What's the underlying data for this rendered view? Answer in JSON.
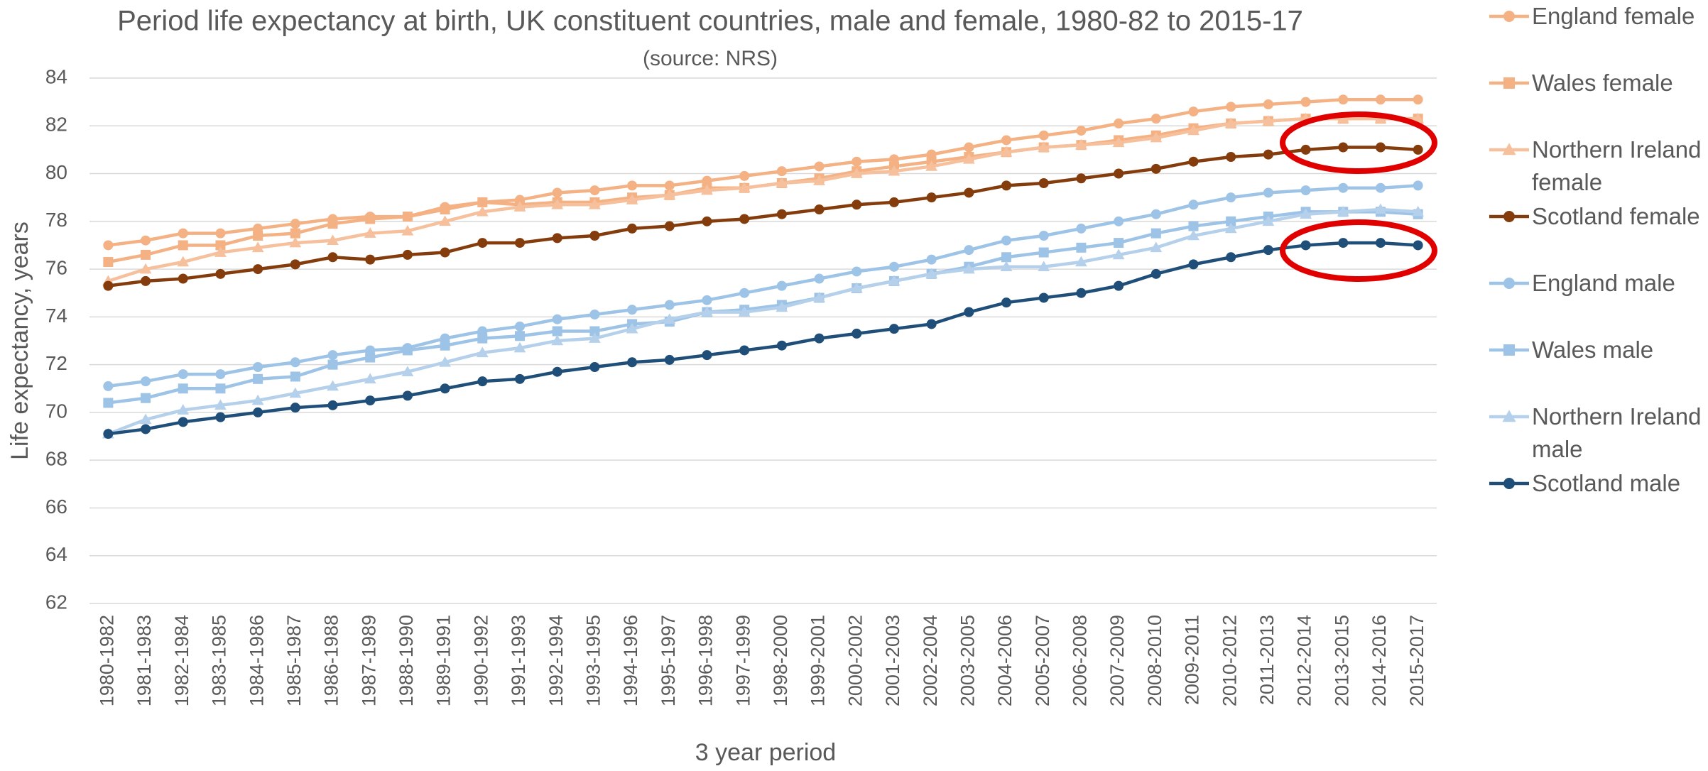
{
  "chart_data": {
    "type": "line",
    "title": "Period life expectancy at birth, UK constituent countries, male and female, 1980-82 to 2015-17",
    "subtitle": "(source: NRS)",
    "x_label": "3 year period",
    "y_label": "Life expectancy, years",
    "categories": [
      "1980-1982",
      "1981-1983",
      "1982-1984",
      "1983-1985",
      "1984-1986",
      "1985-1987",
      "1986-1988",
      "1987-1989",
      "1988-1990",
      "1989-1991",
      "1990-1992",
      "1991-1993",
      "1992-1994",
      "1993-1995",
      "1994-1996",
      "1995-1997",
      "1996-1998",
      "1997-1999",
      "1998-2000",
      "1999-2001",
      "2000-2002",
      "2001-2003",
      "2002-2004",
      "2003-2005",
      "2004-2006",
      "2005-2007",
      "2006-2008",
      "2007-2009",
      "2008-2010",
      "2009-2011",
      "2010-2012",
      "2011-2013",
      "2012-2014",
      "2013-2015",
      "2014-2016",
      "2015-2017"
    ],
    "ylim": [
      62,
      84
    ],
    "yticks": [
      62,
      64,
      66,
      68,
      70,
      72,
      74,
      76,
      78,
      80,
      82,
      84
    ],
    "grid": true,
    "legend": "right",
    "series": [
      {
        "name": "England female",
        "color": "#f4b183",
        "marker": "circle",
        "values": [
          77.0,
          77.2,
          77.5,
          77.5,
          77.7,
          77.9,
          78.1,
          78.2,
          78.2,
          78.6,
          78.8,
          78.9,
          79.2,
          79.3,
          79.5,
          79.5,
          79.7,
          79.9,
          80.1,
          80.3,
          80.5,
          80.6,
          80.8,
          81.1,
          81.4,
          81.6,
          81.8,
          82.1,
          82.3,
          82.6,
          82.8,
          82.9,
          83.0,
          83.1,
          83.1,
          83.1
        ]
      },
      {
        "name": "Wales female",
        "color": "#f4b183",
        "marker": "square",
        "values": [
          76.3,
          76.6,
          77.0,
          77.0,
          77.4,
          77.5,
          77.9,
          78.1,
          78.2,
          78.5,
          78.8,
          78.7,
          78.8,
          78.8,
          79.0,
          79.1,
          79.4,
          79.4,
          79.6,
          79.8,
          80.1,
          80.3,
          80.5,
          80.7,
          80.9,
          81.1,
          81.2,
          81.4,
          81.6,
          81.9,
          82.1,
          82.2,
          82.3,
          82.3,
          82.3,
          82.3
        ]
      },
      {
        "name": "Northern Ireland female",
        "color": "#f6c09c",
        "marker": "triangle",
        "values": [
          75.5,
          76.0,
          76.3,
          76.7,
          76.9,
          77.1,
          77.2,
          77.5,
          77.6,
          78.0,
          78.4,
          78.6,
          78.7,
          78.7,
          78.9,
          79.1,
          79.3,
          79.4,
          79.6,
          79.7,
          80.0,
          80.1,
          80.3,
          80.6,
          80.9,
          81.1,
          81.2,
          81.3,
          81.5,
          81.8,
          82.1,
          82.2,
          82.3,
          82.3,
          82.3,
          82.3
        ]
      },
      {
        "name": "Scotland female",
        "color": "#843c0c",
        "marker": "circle",
        "values": [
          75.3,
          75.5,
          75.6,
          75.8,
          76.0,
          76.2,
          76.5,
          76.4,
          76.6,
          76.7,
          77.1,
          77.1,
          77.3,
          77.4,
          77.7,
          77.8,
          78.0,
          78.1,
          78.3,
          78.5,
          78.7,
          78.8,
          79.0,
          79.2,
          79.5,
          79.6,
          79.8,
          80.0,
          80.2,
          80.5,
          80.7,
          80.8,
          81.0,
          81.1,
          81.1,
          81.0
        ]
      },
      {
        "name": "England male",
        "color": "#9dc3e6",
        "marker": "circle",
        "values": [
          71.1,
          71.3,
          71.6,
          71.6,
          71.9,
          72.1,
          72.4,
          72.6,
          72.7,
          73.1,
          73.4,
          73.6,
          73.9,
          74.1,
          74.3,
          74.5,
          74.7,
          75.0,
          75.3,
          75.6,
          75.9,
          76.1,
          76.4,
          76.8,
          77.2,
          77.4,
          77.7,
          78.0,
          78.3,
          78.7,
          79.0,
          79.2,
          79.3,
          79.4,
          79.4,
          79.5
        ]
      },
      {
        "name": "Wales male",
        "color": "#9dc3e6",
        "marker": "square",
        "values": [
          70.4,
          70.6,
          71.0,
          71.0,
          71.4,
          71.5,
          72.0,
          72.3,
          72.6,
          72.8,
          73.1,
          73.2,
          73.4,
          73.4,
          73.7,
          73.8,
          74.2,
          74.3,
          74.5,
          74.8,
          75.2,
          75.5,
          75.8,
          76.1,
          76.5,
          76.7,
          76.9,
          77.1,
          77.5,
          77.8,
          78.0,
          78.2,
          78.4,
          78.4,
          78.4,
          78.3
        ]
      },
      {
        "name": "Northern Ireland male",
        "color": "#b4d0ea",
        "marker": "triangle",
        "values": [
          69.1,
          69.7,
          70.1,
          70.3,
          70.5,
          70.8,
          71.1,
          71.4,
          71.7,
          72.1,
          72.5,
          72.7,
          73.0,
          73.1,
          73.5,
          73.9,
          74.2,
          74.2,
          74.4,
          74.8,
          75.2,
          75.5,
          75.8,
          76.0,
          76.1,
          76.1,
          76.3,
          76.6,
          76.9,
          77.4,
          77.7,
          78.0,
          78.3,
          78.4,
          78.5,
          78.4
        ]
      },
      {
        "name": "Scotland male",
        "color": "#1f4e79",
        "marker": "circle",
        "values": [
          69.1,
          69.3,
          69.6,
          69.8,
          70.0,
          70.2,
          70.3,
          70.5,
          70.7,
          71.0,
          71.3,
          71.4,
          71.7,
          71.9,
          72.1,
          72.2,
          72.4,
          72.6,
          72.8,
          73.1,
          73.3,
          73.5,
          73.7,
          74.2,
          74.6,
          74.8,
          75.0,
          75.3,
          75.8,
          76.2,
          76.5,
          76.8,
          77.0,
          77.1,
          77.1,
          77.0
        ]
      }
    ]
  }
}
